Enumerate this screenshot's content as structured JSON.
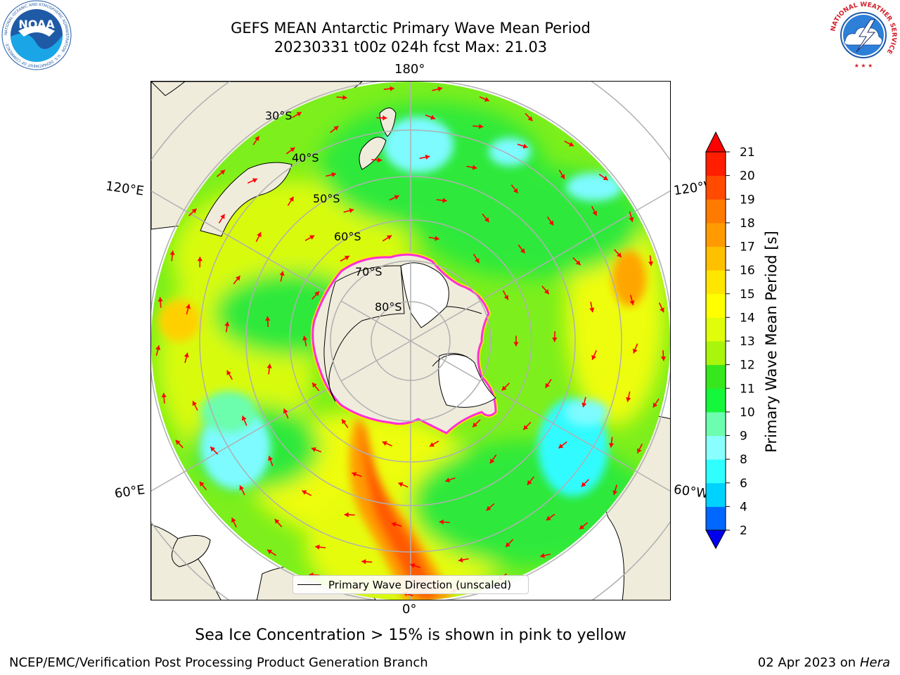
{
  "header": {
    "title_line1": "GEFS MEAN Antarctic Primary Wave Mean Period",
    "title_line2": "20230331 t00z 024h fcst   Max: 21.03"
  },
  "logos": {
    "noaa": {
      "text": "NOAA",
      "ring_text": "NATIONAL OCEANIC AND ATMOSPHERIC ADMINISTRATION · U.S. DEPARTMENT OF COMMERCE ·",
      "color": "#1f5aa6"
    },
    "nws": {
      "ring_text": "NATIONAL WEATHER SERVICE",
      "color": "#d01f2b"
    }
  },
  "map": {
    "projection": "south-polar-stereographic",
    "longitude_labels": {
      "top": "180°",
      "bottom": "0°",
      "left_upper": "120°E",
      "left_lower": "60°E",
      "right_upper": "120°W",
      "right_lower": "60°W"
    },
    "latitude_labels": [
      "30°S",
      "40°S",
      "50°S",
      "60°S",
      "70°S",
      "80°S"
    ],
    "land_color": "#efecdc",
    "ice_shelf_color": "#ffffff",
    "sea_ice_edge_color": "#ff2fd6",
    "arrow_color": "#ff0000",
    "legend_label": "Primary Wave Direction (unscaled)"
  },
  "colorbar": {
    "label": "Primary Wave Mean Period [s]",
    "ticks": [
      "21",
      "20",
      "19",
      "18",
      "17",
      "16",
      "15",
      "14",
      "13",
      "12",
      "11",
      "10",
      "9",
      "8",
      "6",
      "4",
      "2"
    ],
    "colors": [
      "#0000ee",
      "#0068ff",
      "#00d2ff",
      "#30ffff",
      "#8affff",
      "#6dfdae",
      "#14f73a",
      "#37e71e",
      "#a9f50c",
      "#e0fd0b",
      "#ffff00",
      "#ffe600",
      "#ffc000",
      "#ff9b00",
      "#ff7b00",
      "#ff4a00",
      "#ff1e00",
      "#ff0000"
    ]
  },
  "footer": {
    "footnote": "Sea Ice Concentration > 15% is shown in pink to yellow",
    "credit_left": "NCEP/EMC/Verification Post Processing Product Generation Branch",
    "credit_date": "02 Apr 2023 on ",
    "credit_host": "Hera"
  }
}
